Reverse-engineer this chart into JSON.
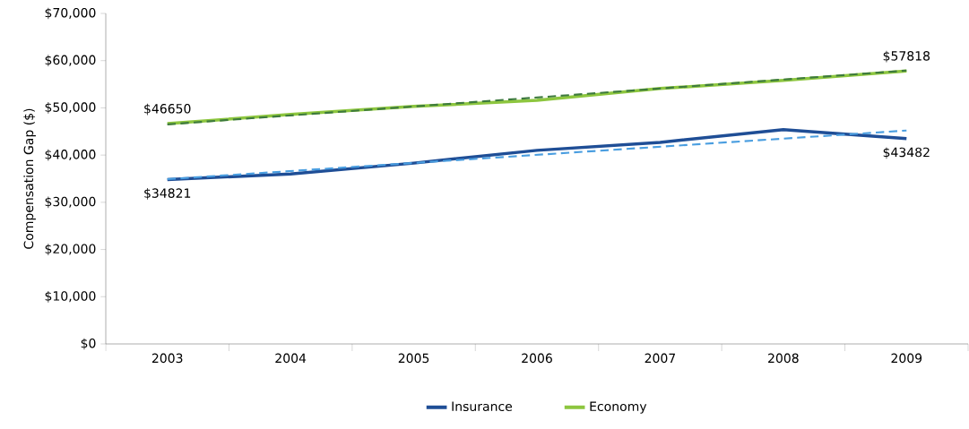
{
  "chart_data": {
    "type": "line",
    "ylabel": "Compensation Gap ($)",
    "categories": [
      "2003",
      "2004",
      "2005",
      "2006",
      "2007",
      "2008",
      "2009"
    ],
    "series": [
      {
        "name": "Insurance",
        "color": "#1f4e96",
        "values": [
          34821,
          36000,
          38300,
          41000,
          42700,
          45400,
          43482
        ]
      },
      {
        "name": "Economy",
        "color": "#8dc63f",
        "values": [
          46650,
          48600,
          50300,
          51600,
          54100,
          55800,
          57818
        ]
      },
      {
        "type": "line",
        "color": "#4a9ee0",
        "line_style": "dashed",
        "values": [
          34900,
          null,
          null,
          null,
          null,
          null,
          45200
        ]
      },
      {
        "type": "line",
        "color": "#3d7a3d",
        "line_style": "dashed",
        "values": [
          46500,
          null,
          null,
          null,
          null,
          null,
          57900
        ]
      }
    ],
    "ylim": [
      0,
      70000
    ],
    "yticks": [
      {
        "value": 0,
        "label": "$0"
      },
      {
        "value": 10000,
        "label": "$10,000"
      },
      {
        "value": 20000,
        "label": "$20,000"
      },
      {
        "value": 30000,
        "label": "$30,000"
      },
      {
        "value": 40000,
        "label": "$40,000"
      },
      {
        "value": 50000,
        "label": "$50,000"
      },
      {
        "value": 60000,
        "label": "$60,000"
      },
      {
        "value": 70000,
        "label": "$70,000"
      }
    ],
    "annotations": [
      {
        "text": "$34821",
        "x": "2003",
        "y": 34821
      },
      {
        "text": "$46650",
        "x": "2003",
        "y": 46650
      },
      {
        "text": "$57818",
        "x": "2009",
        "y": 57818
      },
      {
        "text": "$43482",
        "x": "2009",
        "y": 43482
      }
    ],
    "grid": false,
    "legend": "bottom",
    "marker": "none"
  }
}
